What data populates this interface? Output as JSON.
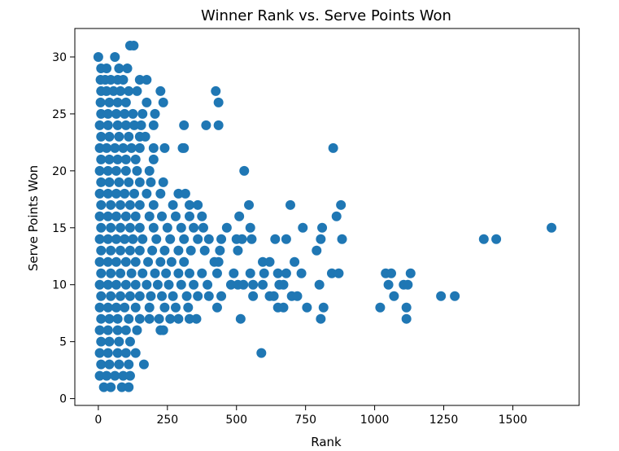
{
  "chart_data": {
    "type": "scatter",
    "title": "Winner Rank vs. Serve Points Won",
    "xlabel": "Rank",
    "ylabel": "Serve Points Won",
    "xlim": [
      -85,
      1740
    ],
    "ylim": [
      -0.6,
      32.5
    ],
    "xticks": [
      0,
      250,
      500,
      750,
      1000,
      1250,
      1500
    ],
    "yticks": [
      0,
      5,
      10,
      15,
      20,
      25,
      30
    ],
    "grid": false,
    "legend": "none",
    "marker_color": "#1f77b4",
    "points": [
      [
        0,
        30
      ],
      [
        60,
        30
      ],
      [
        10,
        29
      ],
      [
        30,
        29
      ],
      [
        75,
        29
      ],
      [
        105,
        29
      ],
      [
        115,
        31
      ],
      [
        128,
        31
      ],
      [
        8,
        28
      ],
      [
        25,
        28
      ],
      [
        45,
        28
      ],
      [
        70,
        28
      ],
      [
        90,
        28
      ],
      [
        150,
        28
      ],
      [
        175,
        28
      ],
      [
        10,
        27
      ],
      [
        30,
        27
      ],
      [
        55,
        27
      ],
      [
        80,
        27
      ],
      [
        110,
        27
      ],
      [
        140,
        27
      ],
      [
        225,
        27
      ],
      [
        425,
        27
      ],
      [
        8,
        26
      ],
      [
        40,
        26
      ],
      [
        70,
        26
      ],
      [
        100,
        26
      ],
      [
        175,
        26
      ],
      [
        235,
        26
      ],
      [
        435,
        26
      ],
      [
        10,
        25
      ],
      [
        35,
        25
      ],
      [
        65,
        25
      ],
      [
        95,
        25
      ],
      [
        125,
        25
      ],
      [
        160,
        25
      ],
      [
        205,
        25
      ],
      [
        5,
        24
      ],
      [
        35,
        24
      ],
      [
        70,
        24
      ],
      [
        100,
        24
      ],
      [
        130,
        24
      ],
      [
        155,
        24
      ],
      [
        200,
        24
      ],
      [
        310,
        24
      ],
      [
        390,
        24
      ],
      [
        435,
        24
      ],
      [
        10,
        23
      ],
      [
        40,
        23
      ],
      [
        75,
        23
      ],
      [
        110,
        23
      ],
      [
        150,
        23
      ],
      [
        170,
        23
      ],
      [
        5,
        22
      ],
      [
        30,
        22
      ],
      [
        60,
        22
      ],
      [
        90,
        22
      ],
      [
        120,
        22
      ],
      [
        150,
        22
      ],
      [
        200,
        22
      ],
      [
        240,
        22
      ],
      [
        305,
        22
      ],
      [
        310,
        22
      ],
      [
        850,
        22
      ],
      [
        10,
        21
      ],
      [
        40,
        21
      ],
      [
        70,
        21
      ],
      [
        100,
        21
      ],
      [
        135,
        21
      ],
      [
        200,
        21
      ],
      [
        5,
        20
      ],
      [
        35,
        20
      ],
      [
        65,
        20
      ],
      [
        100,
        20
      ],
      [
        140,
        20
      ],
      [
        185,
        20
      ],
      [
        528,
        20
      ],
      [
        10,
        19
      ],
      [
        40,
        19
      ],
      [
        75,
        19
      ],
      [
        110,
        19
      ],
      [
        150,
        19
      ],
      [
        190,
        19
      ],
      [
        235,
        19
      ],
      [
        5,
        18
      ],
      [
        35,
        18
      ],
      [
        65,
        18
      ],
      [
        95,
        18
      ],
      [
        130,
        18
      ],
      [
        175,
        18
      ],
      [
        225,
        18
      ],
      [
        290,
        18
      ],
      [
        315,
        18
      ],
      [
        10,
        17
      ],
      [
        45,
        17
      ],
      [
        80,
        17
      ],
      [
        115,
        17
      ],
      [
        150,
        17
      ],
      [
        200,
        17
      ],
      [
        270,
        17
      ],
      [
        330,
        17
      ],
      [
        360,
        17
      ],
      [
        545,
        17
      ],
      [
        695,
        17
      ],
      [
        878,
        17
      ],
      [
        5,
        16
      ],
      [
        35,
        16
      ],
      [
        65,
        16
      ],
      [
        100,
        16
      ],
      [
        135,
        16
      ],
      [
        185,
        16
      ],
      [
        230,
        16
      ],
      [
        280,
        16
      ],
      [
        330,
        16
      ],
      [
        375,
        16
      ],
      [
        510,
        16
      ],
      [
        862,
        16
      ],
      [
        10,
        15
      ],
      [
        45,
        15
      ],
      [
        80,
        15
      ],
      [
        115,
        15
      ],
      [
        150,
        15
      ],
      [
        200,
        15
      ],
      [
        250,
        15
      ],
      [
        300,
        15
      ],
      [
        345,
        15
      ],
      [
        380,
        15
      ],
      [
        465,
        15
      ],
      [
        550,
        15
      ],
      [
        740,
        15
      ],
      [
        810,
        15
      ],
      [
        1640,
        15
      ],
      [
        5,
        14
      ],
      [
        35,
        14
      ],
      [
        65,
        14
      ],
      [
        95,
        14
      ],
      [
        125,
        14
      ],
      [
        160,
        14
      ],
      [
        210,
        14
      ],
      [
        260,
        14
      ],
      [
        310,
        14
      ],
      [
        360,
        14
      ],
      [
        400,
        14
      ],
      [
        445,
        14
      ],
      [
        500,
        14
      ],
      [
        520,
        14
      ],
      [
        555,
        14
      ],
      [
        640,
        14
      ],
      [
        680,
        14
      ],
      [
        805,
        14
      ],
      [
        882,
        14
      ],
      [
        1395,
        14
      ],
      [
        1440,
        14
      ],
      [
        10,
        13
      ],
      [
        45,
        13
      ],
      [
        80,
        13
      ],
      [
        115,
        13
      ],
      [
        150,
        13
      ],
      [
        195,
        13
      ],
      [
        240,
        13
      ],
      [
        290,
        13
      ],
      [
        335,
        13
      ],
      [
        385,
        13
      ],
      [
        440,
        13
      ],
      [
        505,
        13
      ],
      [
        790,
        13
      ],
      [
        5,
        12
      ],
      [
        35,
        12
      ],
      [
        65,
        12
      ],
      [
        100,
        12
      ],
      [
        135,
        12
      ],
      [
        180,
        12
      ],
      [
        225,
        12
      ],
      [
        265,
        12
      ],
      [
        310,
        12
      ],
      [
        420,
        12
      ],
      [
        435,
        12
      ],
      [
        595,
        12
      ],
      [
        620,
        12
      ],
      [
        710,
        12
      ],
      [
        10,
        11
      ],
      [
        45,
        11
      ],
      [
        80,
        11
      ],
      [
        120,
        11
      ],
      [
        160,
        11
      ],
      [
        205,
        11
      ],
      [
        245,
        11
      ],
      [
        290,
        11
      ],
      [
        330,
        11
      ],
      [
        375,
        11
      ],
      [
        430,
        11
      ],
      [
        490,
        11
      ],
      [
        550,
        11
      ],
      [
        600,
        11
      ],
      [
        650,
        11
      ],
      [
        680,
        11
      ],
      [
        735,
        11
      ],
      [
        845,
        11
      ],
      [
        870,
        11
      ],
      [
        1040,
        11
      ],
      [
        1060,
        11
      ],
      [
        1130,
        11
      ],
      [
        5,
        10
      ],
      [
        35,
        10
      ],
      [
        65,
        10
      ],
      [
        100,
        10
      ],
      [
        135,
        10
      ],
      [
        175,
        10
      ],
      [
        215,
        10
      ],
      [
        255,
        10
      ],
      [
        300,
        10
      ],
      [
        345,
        10
      ],
      [
        395,
        10
      ],
      [
        480,
        10
      ],
      [
        505,
        10
      ],
      [
        525,
        10
      ],
      [
        560,
        10
      ],
      [
        595,
        10
      ],
      [
        655,
        10
      ],
      [
        670,
        10
      ],
      [
        800,
        10
      ],
      [
        1050,
        10
      ],
      [
        1105,
        10
      ],
      [
        1120,
        10
      ],
      [
        10,
        9
      ],
      [
        45,
        9
      ],
      [
        80,
        9
      ],
      [
        115,
        9
      ],
      [
        150,
        9
      ],
      [
        190,
        9
      ],
      [
        230,
        9
      ],
      [
        270,
        9
      ],
      [
        320,
        9
      ],
      [
        360,
        9
      ],
      [
        400,
        9
      ],
      [
        445,
        9
      ],
      [
        560,
        9
      ],
      [
        620,
        9
      ],
      [
        635,
        9
      ],
      [
        700,
        9
      ],
      [
        720,
        9
      ],
      [
        1070,
        9
      ],
      [
        1240,
        9
      ],
      [
        1290,
        9
      ],
      [
        5,
        8
      ],
      [
        35,
        8
      ],
      [
        65,
        8
      ],
      [
        95,
        8
      ],
      [
        135,
        8
      ],
      [
        185,
        8
      ],
      [
        240,
        8
      ],
      [
        280,
        8
      ],
      [
        325,
        8
      ],
      [
        430,
        8
      ],
      [
        650,
        8
      ],
      [
        670,
        8
      ],
      [
        755,
        8
      ],
      [
        815,
        8
      ],
      [
        1020,
        8
      ],
      [
        1115,
        8
      ],
      [
        10,
        7
      ],
      [
        40,
        7
      ],
      [
        70,
        7
      ],
      [
        110,
        7
      ],
      [
        150,
        7
      ],
      [
        185,
        7
      ],
      [
        220,
        7
      ],
      [
        260,
        7
      ],
      [
        290,
        7
      ],
      [
        330,
        7
      ],
      [
        355,
        7
      ],
      [
        515,
        7
      ],
      [
        805,
        7
      ],
      [
        1115,
        7
      ],
      [
        5,
        6
      ],
      [
        35,
        6
      ],
      [
        70,
        6
      ],
      [
        100,
        6
      ],
      [
        140,
        6
      ],
      [
        225,
        6
      ],
      [
        235,
        6
      ],
      [
        10,
        5
      ],
      [
        40,
        5
      ],
      [
        75,
        5
      ],
      [
        115,
        5
      ],
      [
        5,
        4
      ],
      [
        35,
        4
      ],
      [
        70,
        4
      ],
      [
        100,
        4
      ],
      [
        135,
        4
      ],
      [
        590,
        4
      ],
      [
        10,
        3
      ],
      [
        40,
        3
      ],
      [
        75,
        3
      ],
      [
        110,
        3
      ],
      [
        165,
        3
      ],
      [
        5,
        2
      ],
      [
        30,
        2
      ],
      [
        60,
        2
      ],
      [
        90,
        2
      ],
      [
        115,
        2
      ],
      [
        20,
        1
      ],
      [
        45,
        1
      ],
      [
        85,
        1
      ],
      [
        110,
        1
      ]
    ]
  }
}
